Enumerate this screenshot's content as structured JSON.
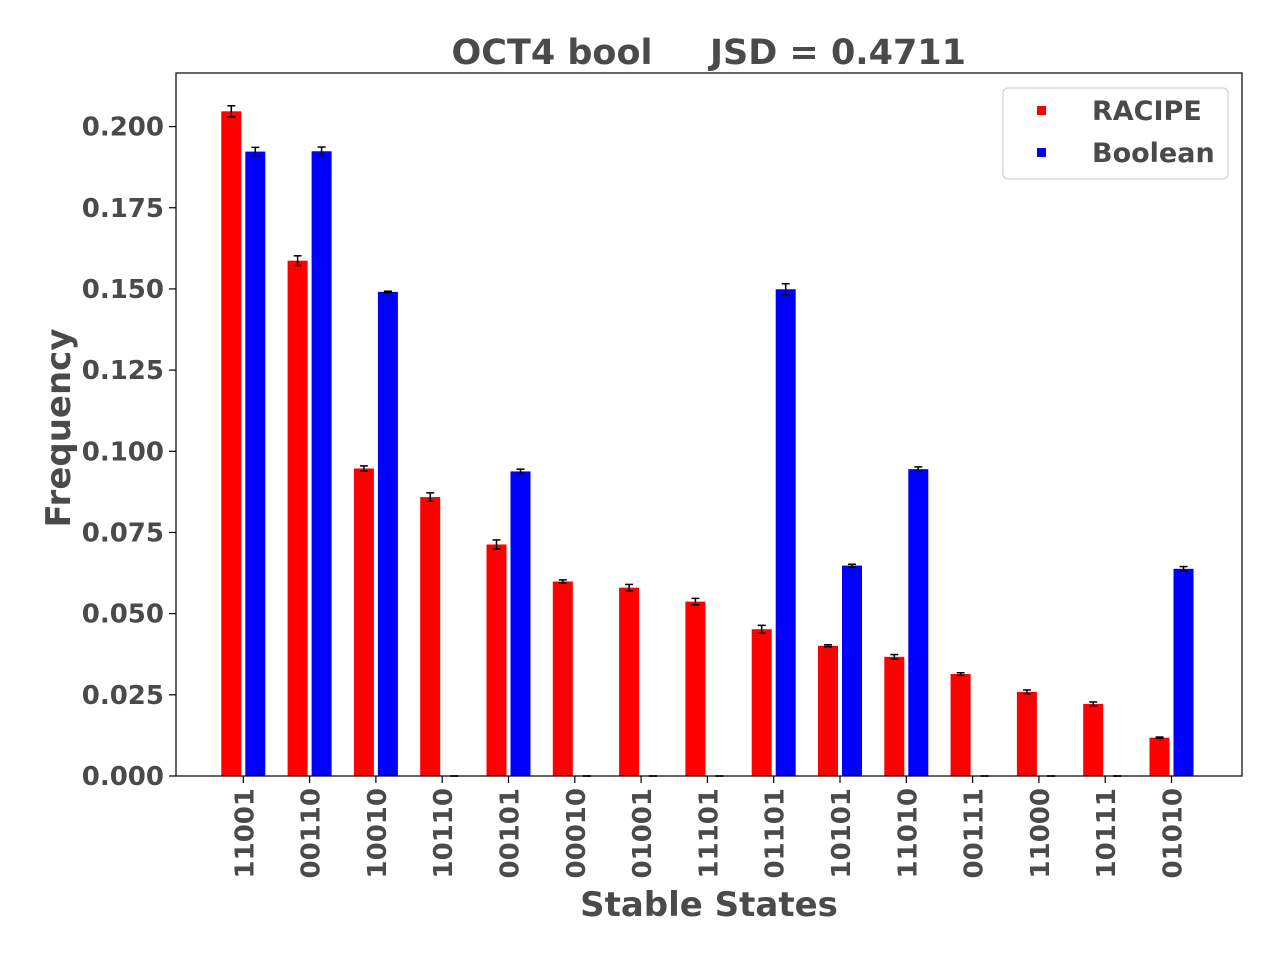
{
  "chart_data": {
    "type": "bar",
    "title": "OCT4 bool",
    "subtitle": "JSD = 0.4711",
    "xlabel": "Stable States",
    "ylabel": "Frequency",
    "ylim": [
      0,
      0.2165
    ],
    "yticks": [
      0.0,
      0.025,
      0.05,
      0.075,
      0.1,
      0.125,
      0.15,
      0.175,
      0.2
    ],
    "ytick_labels": [
      "0.000",
      "0.025",
      "0.050",
      "0.075",
      "0.100",
      "0.125",
      "0.150",
      "0.175",
      "0.200"
    ],
    "categories": [
      "11001",
      "00110",
      "10010",
      "10110",
      "00101",
      "00010",
      "01001",
      "11101",
      "01101",
      "10101",
      "11010",
      "00111",
      "11000",
      "10111",
      "01010"
    ],
    "legend_position": "top-right",
    "grid": false,
    "series": [
      {
        "name": "RACIPE",
        "color": "#ff0000",
        "values": [
          0.2047,
          0.1587,
          0.0947,
          0.0859,
          0.0713,
          0.0599,
          0.058,
          0.0537,
          0.0452,
          0.0401,
          0.0367,
          0.0314,
          0.0259,
          0.0222,
          0.0118
        ],
        "errors": [
          0.0017,
          0.0015,
          0.0008,
          0.0013,
          0.0014,
          0.0005,
          0.001,
          0.001,
          0.0012,
          0.0003,
          0.0007,
          0.0004,
          0.0006,
          0.0006,
          0.0002
        ]
      },
      {
        "name": "Boolean",
        "color": "#0000ff",
        "values": [
          0.1923,
          0.1924,
          0.1491,
          0.0,
          0.0938,
          0.0,
          0.0,
          0.0,
          0.1499,
          0.0648,
          0.0945,
          0.0,
          0.0,
          0.0,
          0.0638
        ],
        "errors": [
          0.0013,
          0.0013,
          0.0002,
          0.0,
          0.0007,
          0.0,
          0.0,
          0.0,
          0.0017,
          0.0004,
          0.0007,
          0.0,
          0.0,
          0.0,
          0.0007
        ]
      }
    ]
  }
}
